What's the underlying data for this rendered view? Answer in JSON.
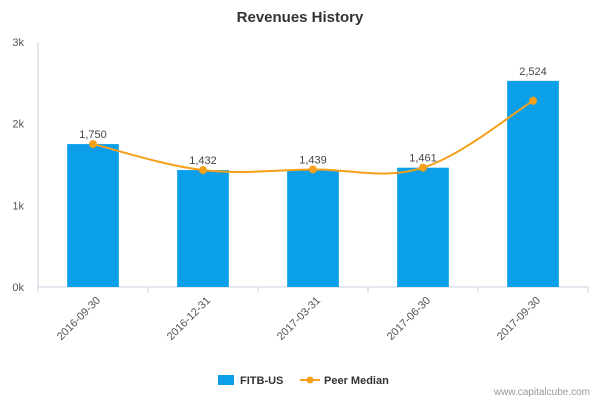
{
  "chart_data": {
    "type": "bar",
    "title": "Revenues History",
    "categories": [
      "2016-09-30",
      "2016-12-31",
      "2017-03-31",
      "2017-06-30",
      "2017-09-30"
    ],
    "series": [
      {
        "name": "FITB-US",
        "type": "bar",
        "values": [
          1750,
          1432,
          1439,
          1461,
          2524
        ],
        "data_labels": [
          "1,750",
          "1,432",
          "1,439",
          "1,461",
          "2,524"
        ],
        "color": "#0a9fe8"
      },
      {
        "name": "Peer Median",
        "type": "line",
        "values": [
          1750,
          1432,
          1439,
          1461,
          2280
        ],
        "color": "#f5a01a"
      }
    ],
    "ylim": [
      0,
      3000
    ],
    "yticks": [
      0,
      1000,
      2000,
      3000
    ],
    "ytick_labels": [
      "0k",
      "1k",
      "2k",
      "3k"
    ],
    "xlabel": "",
    "ylabel": "",
    "grid": false,
    "legend_position": "bottom-center"
  },
  "credit": "www.capitalcube.com"
}
